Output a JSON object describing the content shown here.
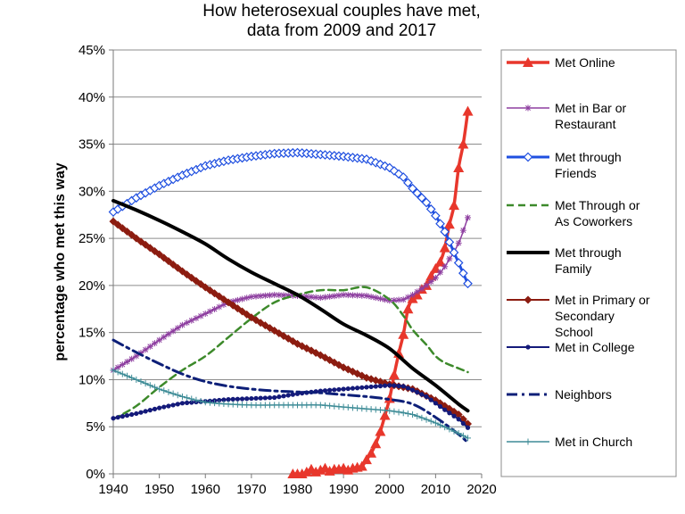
{
  "chart_data": {
    "type": "line",
    "title": [
      "How heterosexual couples have met,",
      "data from 2009 and 2017"
    ],
    "ylabel": "percentage who met this way",
    "xlabel": "",
    "xlim": [
      1940,
      2020
    ],
    "ylim": [
      0,
      45
    ],
    "x_ticks": [
      1940,
      1950,
      1960,
      1970,
      1980,
      1990,
      2000,
      2010,
      2020
    ],
    "x_tick_labels": [
      "1940",
      "1950",
      "1960",
      "1970",
      "1980",
      "1990",
      "2000",
      "2010",
      "2020"
    ],
    "y_ticks": [
      0,
      5,
      10,
      15,
      20,
      25,
      30,
      35,
      40,
      45
    ],
    "y_tick_labels": [
      "0%",
      "5%",
      "10%",
      "15%",
      "20%",
      "25%",
      "30%",
      "35%",
      "40%",
      "45%"
    ],
    "grid": "horizontal",
    "legend_position": "right",
    "series": [
      {
        "name": "Met Online",
        "label_lines": [
          "Met Online"
        ],
        "color": "#e8372c",
        "width": 3.5,
        "dash": "",
        "marker": "triangle",
        "x": [
          1979,
          1980,
          1981,
          1982,
          1983,
          1984,
          1985,
          1986,
          1987,
          1988,
          1989,
          1990,
          1991,
          1992,
          1993,
          1994,
          1995,
          1996,
          1997,
          1998,
          1999,
          2000,
          2001,
          2002,
          2003,
          2004,
          2005,
          2006,
          2007,
          2008,
          2009,
          2010,
          2011,
          2012,
          2013,
          2014,
          2015,
          2016,
          2017
        ],
        "y": [
          0,
          0,
          0,
          0.2,
          0.5,
          0.2,
          0.4,
          0.6,
          0.3,
          0.5,
          0.5,
          0.6,
          0.4,
          0.6,
          0.7,
          0.8,
          1.5,
          2.2,
          3.2,
          4.5,
          6.2,
          8.0,
          10.5,
          12.8,
          14.8,
          17.5,
          18.6,
          19.0,
          19.6,
          20.0,
          21.0,
          21.8,
          22.5,
          24.0,
          26.5,
          28.5,
          32.5,
          35.0,
          38.5
        ]
      },
      {
        "name": "Met in Bar or Restaurant",
        "label_lines": [
          "Met in Bar or",
          "Restaurant"
        ],
        "color": "#8e3fa0",
        "width": 1.5,
        "dash": "",
        "marker": "star",
        "x": [
          1940,
          1945,
          1950,
          1955,
          1960,
          1965,
          1970,
          1975,
          1980,
          1985,
          1990,
          1995,
          2000,
          2003,
          2005,
          2008,
          2010,
          2012,
          2015,
          2017
        ],
        "y": [
          11.0,
          12.5,
          14.2,
          15.8,
          17.0,
          18.2,
          18.8,
          19.0,
          18.9,
          18.7,
          19.0,
          18.9,
          18.4,
          18.5,
          19.0,
          20.0,
          20.8,
          22.0,
          24.5,
          27.2
        ]
      },
      {
        "name": "Met through Friends",
        "label_lines": [
          "Met through",
          "Friends"
        ],
        "color": "#1f4fe0",
        "width": 3,
        "dash": "",
        "marker": "diamond",
        "x": [
          1940,
          1945,
          1950,
          1955,
          1960,
          1965,
          1970,
          1975,
          1980,
          1985,
          1990,
          1995,
          2000,
          2003,
          2005,
          2008,
          2010,
          2012,
          2014,
          2016,
          2017
        ],
        "y": [
          27.8,
          29.3,
          30.6,
          31.7,
          32.7,
          33.3,
          33.7,
          34.0,
          34.1,
          33.9,
          33.7,
          33.4,
          32.5,
          31.5,
          30.3,
          28.8,
          27.4,
          25.7,
          23.5,
          21.3,
          20.2
        ]
      },
      {
        "name": "Met Through or As Coworkers",
        "label_lines": [
          "Met Through or",
          "As Coworkers"
        ],
        "color": "#3d8a2b",
        "width": 2.5,
        "dash": "8,5",
        "marker": "",
        "x": [
          1940,
          1945,
          1950,
          1955,
          1960,
          1965,
          1970,
          1975,
          1980,
          1985,
          1990,
          1995,
          2000,
          2003,
          2005,
          2008,
          2010,
          2012,
          2015,
          2017
        ],
        "y": [
          5.8,
          7.2,
          9.2,
          11.0,
          12.5,
          14.5,
          16.5,
          18.2,
          19.0,
          19.5,
          19.5,
          19.8,
          18.5,
          16.8,
          15.3,
          13.7,
          12.5,
          11.8,
          11.2,
          10.8
        ]
      },
      {
        "name": "Met through Family",
        "label_lines": [
          "Met through",
          "Family"
        ],
        "color": "#000000",
        "width": 4,
        "dash": "",
        "marker": "",
        "x": [
          1940,
          1945,
          1950,
          1955,
          1960,
          1965,
          1970,
          1975,
          1980,
          1985,
          1990,
          1995,
          2000,
          2005,
          2010,
          2015,
          2017
        ],
        "y": [
          29.0,
          28.0,
          26.9,
          25.7,
          24.4,
          22.8,
          21.4,
          20.2,
          19.0,
          17.5,
          15.9,
          14.7,
          13.3,
          11.2,
          9.4,
          7.4,
          6.7
        ]
      },
      {
        "name": "Met in Primary or Secondary School",
        "label_lines": [
          "Met in Primary or",
          "Secondary",
          "School"
        ],
        "color": "#8c1c10",
        "width": 2,
        "dash": "",
        "marker": "diamond-filled",
        "x": [
          1940,
          1945,
          1950,
          1955,
          1960,
          1965,
          1970,
          1975,
          1980,
          1985,
          1990,
          1995,
          2000,
          2005,
          2010,
          2015,
          2017
        ],
        "y": [
          26.8,
          25.0,
          23.3,
          21.5,
          19.8,
          18.2,
          16.6,
          15.2,
          13.8,
          12.6,
          11.3,
          10.2,
          9.5,
          9.0,
          7.8,
          6.3,
          5.3
        ]
      },
      {
        "name": "Met in College",
        "label_lines": [
          "Met in College"
        ],
        "color": "#141a7a",
        "width": 2,
        "dash": "",
        "marker": "circle",
        "x": [
          1940,
          1945,
          1950,
          1955,
          1960,
          1965,
          1970,
          1975,
          1980,
          1985,
          1990,
          1995,
          2000,
          2003,
          2005,
          2008,
          2010,
          2012,
          2015,
          2017
        ],
        "y": [
          5.9,
          6.4,
          7.0,
          7.5,
          7.7,
          7.9,
          8.0,
          8.1,
          8.5,
          8.8,
          9.0,
          9.2,
          9.4,
          9.3,
          8.9,
          8.2,
          7.5,
          6.8,
          5.8,
          4.9
        ]
      },
      {
        "name": "Neighbors",
        "label_lines": [
          "Neighbors"
        ],
        "color": "#0d1f78",
        "width": 3,
        "dash": "12,5,3,5",
        "marker": "",
        "x": [
          1940,
          1945,
          1950,
          1955,
          1960,
          1965,
          1970,
          1975,
          1980,
          1985,
          1990,
          1995,
          2000,
          2005,
          2010,
          2015,
          2017
        ],
        "y": [
          14.2,
          12.9,
          11.7,
          10.6,
          9.8,
          9.3,
          9.0,
          8.8,
          8.7,
          8.6,
          8.4,
          8.2,
          7.9,
          7.4,
          6.0,
          4.2,
          3.3
        ]
      },
      {
        "name": "Met in Church",
        "label_lines": [
          "Met in Church"
        ],
        "color": "#3e8c97",
        "width": 1.5,
        "dash": "",
        "marker": "plus",
        "x": [
          1940,
          1945,
          1950,
          1955,
          1960,
          1965,
          1970,
          1975,
          1980,
          1985,
          1990,
          1995,
          2000,
          2005,
          2010,
          2015,
          2017
        ],
        "y": [
          11.0,
          10.0,
          9.0,
          8.2,
          7.6,
          7.4,
          7.3,
          7.3,
          7.3,
          7.3,
          7.1,
          6.9,
          6.7,
          6.3,
          5.4,
          4.3,
          3.8
        ]
      }
    ]
  }
}
